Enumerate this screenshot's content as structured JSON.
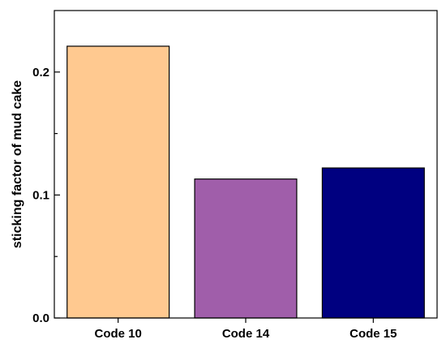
{
  "chart_data": {
    "type": "bar",
    "title": "",
    "xlabel": "",
    "ylabel": "sticking factor of mud cake",
    "categories": [
      "Code 10",
      "Code 14",
      "Code 15"
    ],
    "values": [
      0.221,
      0.113,
      0.122
    ],
    "bar_colors": [
      "#FFC990",
      "#A05EAA",
      "#000080"
    ],
    "ylim": [
      0.0,
      0.25
    ],
    "yticks": [
      0.0,
      0.1,
      0.2
    ],
    "ytick_labels": [
      "0.0",
      "0.1",
      "0.2"
    ],
    "grid": false,
    "legend": "none"
  }
}
